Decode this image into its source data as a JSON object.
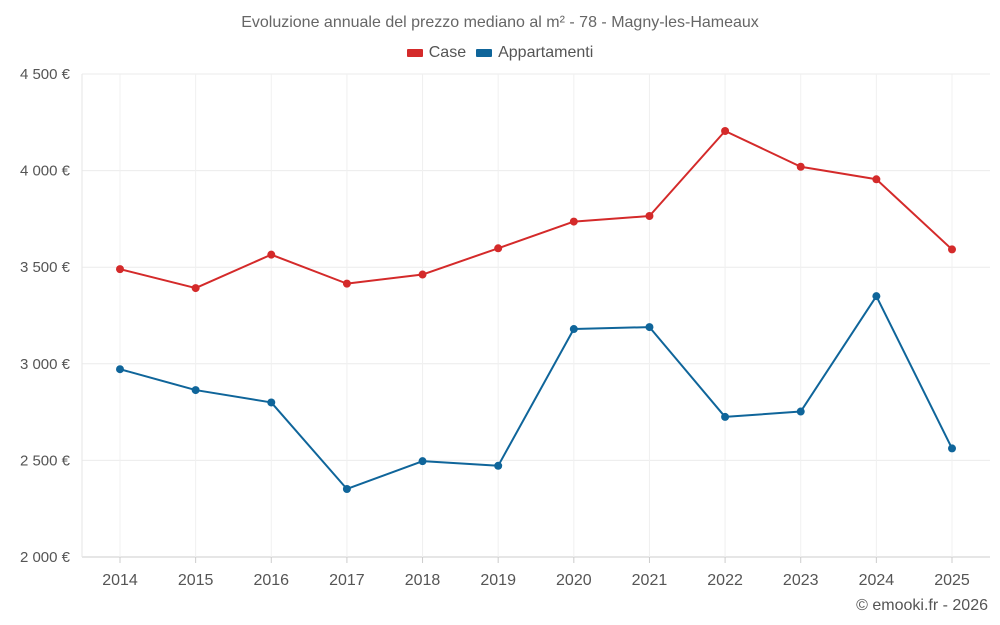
{
  "chart_data": {
    "type": "line",
    "title": "Evoluzione annuale del prezzo mediano al m² - 78 - Magny-les-Hameaux",
    "categories": [
      "2014",
      "2015",
      "2016",
      "2017",
      "2018",
      "2019",
      "2020",
      "2021",
      "2022",
      "2023",
      "2024",
      "2025"
    ],
    "series": [
      {
        "name": "Case",
        "color": "#d42a2a",
        "values": [
          3490,
          3392,
          3565,
          3415,
          3462,
          3598,
          3736,
          3765,
          4205,
          4020,
          3955,
          3592
        ]
      },
      {
        "name": "Appartamenti",
        "color": "#0f659a",
        "values": [
          2972,
          2864,
          2800,
          2352,
          2496,
          2472,
          3180,
          3190,
          2725,
          2753,
          3350,
          2562
        ]
      }
    ],
    "yticks": [
      {
        "value": 2000,
        "label": "2 000 €"
      },
      {
        "value": 2500,
        "label": "2 500 €"
      },
      {
        "value": 3000,
        "label": "3 000 €"
      },
      {
        "value": 3500,
        "label": "3 500 €"
      },
      {
        "value": 4000,
        "label": "4 000 €"
      },
      {
        "value": 4500,
        "label": "4 500 €"
      }
    ],
    "ylim": [
      2000,
      4500
    ],
    "xlabel": "",
    "ylabel": "",
    "grid": true,
    "legend_position": "top-center"
  },
  "credit": "© emooki.fr - 2026"
}
